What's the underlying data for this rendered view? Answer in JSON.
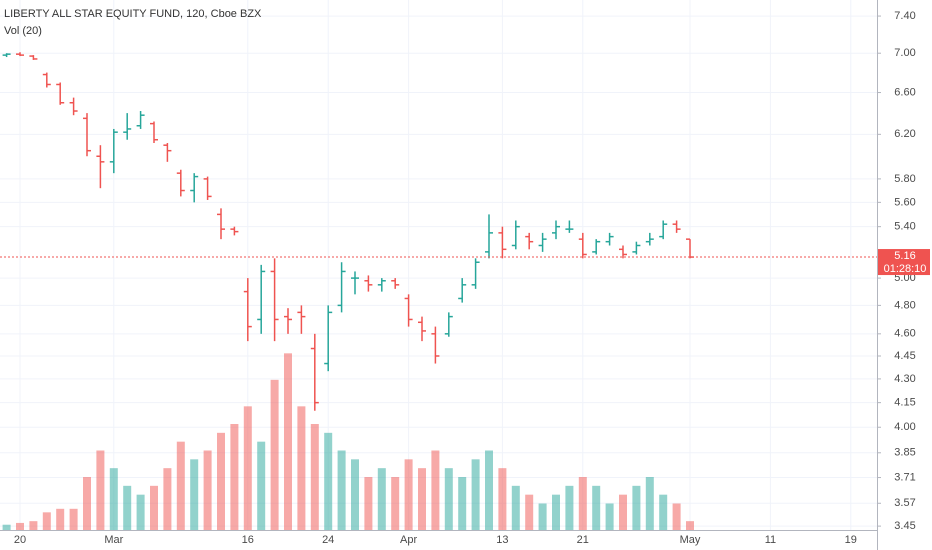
{
  "chart_data": {
    "type": "ohlc",
    "title": "LIBERTY ALL STAR EQUITY FUND, 120, Cboe BZX",
    "subtitle": "Vol (20)",
    "categories": [
      null,
      "20",
      null,
      null,
      null,
      null,
      null,
      null,
      "Mar",
      null,
      null,
      null,
      null,
      null,
      null,
      null,
      null,
      null,
      "16",
      null,
      null,
      null,
      null,
      null,
      "24",
      null,
      null,
      null,
      null,
      null,
      "Apr",
      null,
      null,
      null,
      null,
      null,
      null,
      "13",
      null,
      null,
      null,
      null,
      null,
      "21",
      null,
      null,
      null,
      null,
      null,
      null,
      null,
      "May",
      null,
      null,
      null,
      null,
      null,
      "11",
      null,
      null,
      null,
      null,
      null,
      "19"
    ],
    "open": [
      6.98,
      6.99,
      6.97,
      6.78,
      6.68,
      6.5,
      6.35,
      6.0,
      5.95,
      6.22,
      6.28,
      6.3,
      6.1,
      5.85,
      5.7,
      5.8,
      5.5,
      5.38,
      4.9,
      4.7,
      5.05,
      4.72,
      4.75,
      4.5,
      4.4,
      4.8,
      5.0,
      4.98,
      4.95,
      4.98,
      4.85,
      4.68,
      4.6,
      4.6,
      4.85,
      4.95,
      5.2,
      5.35,
      5.25,
      5.32,
      5.25,
      5.35,
      5.38,
      5.3,
      5.2,
      5.28,
      5.22,
      5.2,
      5.28,
      5.32,
      5.42,
      5.3,
      null,
      null,
      null,
      null,
      null,
      null,
      null,
      null,
      null,
      null,
      null,
      null
    ],
    "high": [
      7.0,
      7.01,
      6.98,
      6.8,
      6.7,
      6.55,
      6.4,
      6.1,
      6.25,
      6.4,
      6.42,
      6.32,
      6.12,
      5.88,
      5.85,
      5.82,
      5.55,
      5.4,
      5.0,
      5.1,
      5.15,
      4.78,
      4.8,
      4.6,
      4.8,
      5.12,
      5.05,
      5.02,
      5.0,
      5.0,
      4.88,
      4.72,
      4.65,
      4.75,
      5.0,
      5.15,
      5.5,
      5.4,
      5.45,
      5.35,
      5.35,
      5.45,
      5.45,
      5.35,
      5.3,
      5.35,
      5.25,
      5.28,
      5.35,
      5.45,
      5.45,
      5.3,
      null,
      null,
      null,
      null,
      null,
      null,
      null,
      null,
      null,
      null,
      null,
      null
    ],
    "low": [
      6.96,
      6.97,
      6.93,
      6.65,
      6.48,
      6.38,
      6.0,
      5.72,
      5.85,
      6.15,
      6.25,
      6.12,
      5.95,
      5.65,
      5.6,
      5.62,
      5.3,
      5.33,
      4.55,
      4.6,
      4.55,
      4.6,
      4.6,
      4.1,
      4.35,
      4.75,
      4.88,
      4.9,
      4.9,
      4.92,
      4.65,
      4.55,
      4.4,
      4.58,
      4.82,
      4.92,
      5.15,
      5.15,
      5.22,
      5.22,
      5.2,
      5.3,
      5.35,
      5.15,
      5.18,
      5.25,
      5.15,
      5.18,
      5.25,
      5.3,
      5.35,
      5.15,
      null,
      null,
      null,
      null,
      null,
      null,
      null,
      null,
      null,
      null,
      null,
      null
    ],
    "close": [
      6.99,
      6.98,
      6.94,
      6.68,
      6.5,
      6.42,
      6.05,
      5.95,
      6.22,
      6.25,
      6.38,
      6.15,
      6.05,
      5.7,
      5.82,
      5.65,
      5.38,
      5.36,
      4.65,
      5.05,
      4.7,
      4.7,
      4.72,
      4.15,
      4.75,
      5.05,
      5.0,
      4.95,
      4.98,
      4.95,
      4.7,
      4.62,
      4.45,
      4.72,
      4.95,
      5.12,
      5.35,
      5.22,
      5.4,
      5.28,
      5.3,
      5.4,
      5.38,
      5.18,
      5.28,
      5.32,
      5.18,
      5.25,
      5.3,
      5.42,
      5.38,
      5.16,
      null,
      null,
      null,
      null,
      null,
      null,
      null,
      null,
      null,
      null,
      null,
      null
    ],
    "volume": [
      3,
      4,
      5,
      10,
      12,
      12,
      30,
      45,
      35,
      25,
      20,
      25,
      35,
      50,
      40,
      45,
      55,
      60,
      70,
      50,
      85,
      100,
      70,
      60,
      55,
      45,
      40,
      30,
      35,
      30,
      40,
      35,
      45,
      35,
      30,
      40,
      45,
      35,
      25,
      20,
      15,
      20,
      25,
      30,
      25,
      15,
      20,
      25,
      30,
      20,
      15,
      5,
      null,
      null,
      null,
      null,
      null,
      null,
      null,
      null,
      null,
      null,
      null,
      null
    ],
    "up_color": "#26a69a",
    "down_color": "#ef5350",
    "log_scale": true,
    "grid": true,
    "ylim": [
      3.43,
      7.58
    ],
    "yticks": [
      {
        "value": 7.4,
        "label": "7.40"
      },
      {
        "value": 7.0,
        "label": "7.00"
      },
      {
        "value": 6.6,
        "label": "6.60"
      },
      {
        "value": 6.2,
        "label": "6.20"
      },
      {
        "value": 5.8,
        "label": "5.80"
      },
      {
        "value": 5.6,
        "label": "5.60"
      },
      {
        "value": 5.4,
        "label": "5.40"
      },
      {
        "value": 5.0,
        "label": "5.00"
      },
      {
        "value": 4.8,
        "label": "4.80"
      },
      {
        "value": 4.6,
        "label": "4.60"
      },
      4.45,
      {
        "value": 4.3,
        "label": "4.30"
      },
      4.15,
      {
        "value": 4.0,
        "label": "4.00"
      },
      3.85,
      3.71,
      3.57,
      3.45
    ],
    "y2lim": [
      0,
      300
    ],
    "last_price": 5.16,
    "countdown": "01:28:10"
  }
}
